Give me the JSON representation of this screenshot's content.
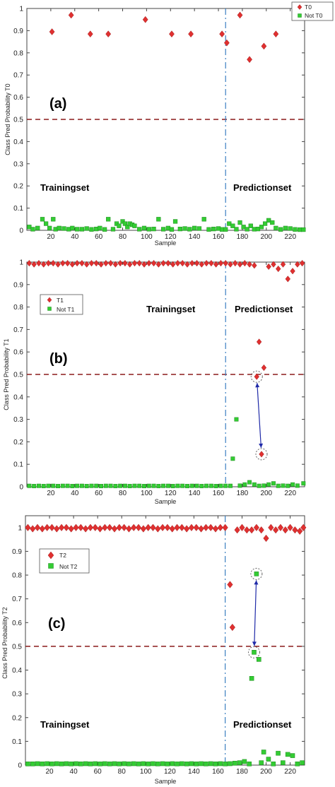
{
  "chart_data": [
    {
      "type": "scatter",
      "panel_label": "(a)",
      "xlabel": "Sample",
      "ylabel": "Class Pred Probability T0",
      "xlim": [
        0,
        232
      ],
      "ylim": [
        0,
        1
      ],
      "xticks": [
        20,
        40,
        60,
        80,
        100,
        120,
        140,
        160,
        180,
        200,
        220
      ],
      "yticks": [
        0,
        0.1,
        0.2,
        0.3,
        0.4,
        0.5,
        0.6,
        0.7,
        0.8,
        0.9,
        1
      ],
      "yticklabels": [
        "0",
        "0.1",
        "0.2",
        "0.3",
        "0.4",
        "0.5",
        "0.6",
        "0.7",
        "0.8",
        "0.9",
        "1"
      ],
      "threshold": 0.5,
      "split_x": 166,
      "training_label": "Trainingset",
      "prediction_label": "Predictionset",
      "legend": "top-right",
      "series": [
        {
          "name": "T0",
          "marker": "diamond",
          "color": "#e03030",
          "x": [
            21,
            37,
            53,
            68,
            99,
            121,
            137,
            163,
            167,
            178,
            186,
            198,
            208
          ],
          "y": [
            0.895,
            0.97,
            0.885,
            0.885,
            0.95,
            0.885,
            0.885,
            0.885,
            0.845,
            0.97,
            0.77,
            0.83,
            0.885
          ]
        },
        {
          "name": "Not T0",
          "marker": "square",
          "color": "#33cc33",
          "x": [
            2,
            5,
            9,
            13,
            16,
            19,
            22,
            24,
            27,
            31,
            35,
            38,
            42,
            46,
            50,
            54,
            58,
            61,
            65,
            68,
            72,
            75,
            77,
            80,
            82,
            84,
            86,
            88,
            90,
            94,
            98,
            102,
            106,
            110,
            114,
            118,
            121,
            124,
            128,
            132,
            136,
            140,
            144,
            148,
            152,
            156,
            160,
            163,
            166,
            169,
            172,
            175,
            178,
            181,
            184,
            187,
            190,
            193,
            196,
            199,
            202,
            205,
            208,
            212,
            216,
            220,
            224,
            228,
            231
          ],
          "y": [
            0.015,
            0.005,
            0.01,
            0.05,
            0.03,
            0.01,
            0.05,
            0.005,
            0.01,
            0.008,
            0.005,
            0.01,
            0.005,
            0.005,
            0.008,
            0.004,
            0.006,
            0.01,
            0.004,
            0.05,
            0.005,
            0.03,
            0.02,
            0.04,
            0.03,
            0.015,
            0.03,
            0.025,
            0.02,
            0.005,
            0.01,
            0.005,
            0.006,
            0.05,
            0.005,
            0.01,
            0.004,
            0.04,
            0.006,
            0.008,
            0.005,
            0.01,
            0.008,
            0.05,
            0.004,
            0.006,
            0.008,
            0.004,
            0.004,
            0.03,
            0.02,
            0.005,
            0.035,
            0.015,
            0.005,
            0.02,
            0.005,
            0.006,
            0.015,
            0.03,
            0.045,
            0.035,
            0.01,
            0.004,
            0.01,
            0.008,
            0.004,
            0.003,
            0.003
          ]
        }
      ]
    },
    {
      "type": "scatter",
      "panel_label": "(b)",
      "xlabel": "Sample",
      "ylabel": "Class Pred Probability T1",
      "xlim": [
        0,
        232
      ],
      "ylim": [
        0,
        1
      ],
      "xticks": [
        20,
        40,
        60,
        80,
        100,
        120,
        140,
        160,
        180,
        200,
        220
      ],
      "yticks": [
        0,
        0.1,
        0.2,
        0.3,
        0.4,
        0.5,
        0.6,
        0.7,
        0.8,
        0.9,
        1
      ],
      "yticklabels": [
        "0",
        "0.1",
        "0.2",
        "0.3",
        "0.4",
        "0.5",
        "0.6",
        "0.7",
        "0.8",
        "0.9",
        "1"
      ],
      "threshold": 0.5,
      "split_x": 166,
      "training_label": "Trainingset",
      "prediction_label": "Predictionset",
      "legend": "top-left",
      "series": [
        {
          "name": "T1",
          "marker": "diamond",
          "color": "#e03030",
          "x": [
            2,
            6,
            10,
            14,
            18,
            22,
            26,
            30,
            34,
            38,
            42,
            46,
            50,
            54,
            58,
            62,
            66,
            70,
            74,
            78,
            82,
            86,
            90,
            94,
            98,
            102,
            106,
            110,
            114,
            118,
            122,
            126,
            130,
            134,
            138,
            142,
            146,
            150,
            154,
            158,
            162,
            166,
            170,
            174,
            178,
            182,
            186,
            190,
            192,
            194,
            196,
            198,
            202,
            206,
            210,
            214,
            218,
            222,
            226,
            230
          ],
          "y": [
            0.995,
            0.99,
            0.995,
            0.99,
            0.995,
            0.995,
            0.99,
            0.995,
            0.995,
            0.99,
            0.995,
            0.995,
            0.99,
            0.995,
            0.995,
            0.99,
            0.995,
            0.995,
            0.99,
            0.995,
            0.995,
            0.99,
            0.995,
            0.995,
            0.99,
            0.995,
            0.995,
            0.99,
            0.995,
            0.995,
            0.99,
            0.995,
            0.995,
            0.99,
            0.995,
            0.995,
            0.99,
            0.995,
            0.995,
            0.99,
            0.995,
            0.995,
            0.99,
            0.995,
            0.99,
            0.995,
            0.99,
            0.985,
            0.49,
            0.645,
            0.145,
            0.53,
            0.98,
            0.99,
            0.97,
            0.99,
            0.925,
            0.96,
            0.99,
            0.995
          ]
        },
        {
          "name": "Not T1",
          "marker": "square",
          "color": "#33cc33",
          "x": [
            2,
            6,
            10,
            14,
            18,
            22,
            26,
            30,
            34,
            38,
            42,
            46,
            50,
            54,
            58,
            62,
            66,
            70,
            74,
            78,
            82,
            86,
            90,
            94,
            98,
            102,
            106,
            110,
            114,
            118,
            122,
            126,
            130,
            134,
            138,
            142,
            146,
            150,
            154,
            158,
            162,
            166,
            170,
            172,
            175,
            178,
            182,
            186,
            190,
            194,
            198,
            202,
            206,
            210,
            214,
            218,
            222,
            226,
            231
          ],
          "y": [
            0.004,
            0.003,
            0.004,
            0.003,
            0.004,
            0.004,
            0.003,
            0.004,
            0.004,
            0.003,
            0.004,
            0.004,
            0.003,
            0.004,
            0.004,
            0.003,
            0.004,
            0.004,
            0.003,
            0.004,
            0.004,
            0.003,
            0.004,
            0.004,
            0.003,
            0.004,
            0.004,
            0.003,
            0.004,
            0.004,
            0.003,
            0.004,
            0.004,
            0.003,
            0.004,
            0.004,
            0.003,
            0.004,
            0.004,
            0.003,
            0.004,
            0.004,
            0.004,
            0.125,
            0.3,
            0.005,
            0.01,
            0.02,
            0.01,
            0.004,
            0.005,
            0.01,
            0.015,
            0.004,
            0.005,
            0.004,
            0.01,
            0.005,
            0.015
          ]
        }
      ],
      "annotations": {
        "circled_points": [
          [
            192,
            0.49
          ],
          [
            196,
            0.145
          ]
        ],
        "arrow": {
          "from": [
            192,
            0.49
          ],
          "to": [
            196,
            0.145
          ],
          "color": "#1f2aa8"
        }
      }
    },
    {
      "type": "scatter",
      "panel_label": "(c)",
      "xlabel": "Sample",
      "ylabel": "Class Pred Probability T2",
      "xlim": [
        0,
        232
      ],
      "ylim": [
        0,
        1.05
      ],
      "xticks": [
        20,
        40,
        60,
        80,
        100,
        120,
        140,
        160,
        180,
        200,
        220
      ],
      "yticks": [
        0,
        0.1,
        0.2,
        0.3,
        0.4,
        0.5,
        0.6,
        0.7,
        0.8,
        0.9,
        1
      ],
      "yticklabels": [
        "0",
        "0.1",
        "0.2",
        "0.3",
        "0.4",
        "0.5",
        "0.6",
        "0.7",
        "0.8",
        "0.9",
        "1"
      ],
      "threshold": 0.5,
      "split_x": 166,
      "training_label": "Trainingset",
      "prediction_label": "Predictionset",
      "legend": "top-left",
      "series": [
        {
          "name": "T2",
          "marker": "diamond",
          "color": "#e03030",
          "x": [
            2,
            6,
            10,
            14,
            18,
            22,
            26,
            30,
            34,
            38,
            42,
            46,
            50,
            54,
            58,
            62,
            66,
            70,
            74,
            78,
            82,
            86,
            90,
            94,
            98,
            102,
            106,
            110,
            114,
            118,
            122,
            126,
            130,
            134,
            138,
            142,
            146,
            150,
            154,
            158,
            162,
            166,
            170,
            172,
            176,
            180,
            184,
            188,
            192,
            196,
            200,
            204,
            208,
            212,
            216,
            220,
            224,
            228,
            231
          ],
          "y": [
            1.0,
            0.995,
            1.0,
            0.995,
            1.0,
            1.0,
            0.995,
            1.0,
            1.0,
            0.995,
            1.0,
            1.0,
            0.995,
            1.0,
            1.0,
            0.995,
            1.0,
            1.0,
            0.995,
            1.0,
            1.0,
            0.995,
            1.0,
            1.0,
            0.995,
            1.0,
            1.0,
            0.995,
            1.0,
            1.0,
            0.995,
            1.0,
            1.0,
            0.995,
            1.0,
            1.0,
            0.995,
            1.0,
            1.0,
            0.995,
            1.0,
            1.0,
            0.76,
            0.58,
            0.99,
            1.0,
            0.99,
            0.99,
            1.0,
            0.99,
            0.955,
            1.0,
            0.99,
            1.0,
            0.99,
            1.0,
            0.99,
            0.985,
            1.0
          ]
        },
        {
          "name": "Not T2",
          "marker": "square",
          "color": "#33cc33",
          "x": [
            2,
            6,
            10,
            14,
            18,
            22,
            26,
            30,
            34,
            38,
            42,
            46,
            50,
            54,
            58,
            62,
            66,
            70,
            74,
            78,
            82,
            86,
            90,
            94,
            98,
            102,
            106,
            110,
            114,
            118,
            122,
            126,
            130,
            134,
            138,
            142,
            146,
            150,
            154,
            158,
            162,
            166,
            170,
            174,
            178,
            182,
            186,
            188,
            190,
            192,
            194,
            196,
            198,
            202,
            206,
            210,
            214,
            218,
            222,
            226,
            230
          ],
          "y": [
            0.005,
            0.005,
            0.006,
            0.005,
            0.006,
            0.005,
            0.006,
            0.005,
            0.006,
            0.005,
            0.006,
            0.005,
            0.006,
            0.005,
            0.006,
            0.005,
            0.006,
            0.005,
            0.006,
            0.005,
            0.006,
            0.005,
            0.006,
            0.005,
            0.006,
            0.005,
            0.006,
            0.005,
            0.006,
            0.005,
            0.006,
            0.005,
            0.006,
            0.005,
            0.006,
            0.005,
            0.006,
            0.005,
            0.006,
            0.005,
            0.006,
            0.005,
            0.006,
            0.008,
            0.01,
            0.015,
            0.005,
            0.365,
            0.475,
            0.805,
            0.445,
            0.01,
            0.055,
            0.025,
            0.005,
            0.05,
            0.01,
            0.045,
            0.04,
            0.005,
            0.01
          ]
        }
      ],
      "annotations": {
        "circled_points": [
          [
            192,
            0.805
          ],
          [
            190,
            0.475
          ]
        ],
        "arrow": {
          "from": [
            192,
            0.805
          ],
          "to": [
            190,
            0.475
          ],
          "color": "#1f2aa8"
        }
      }
    }
  ]
}
